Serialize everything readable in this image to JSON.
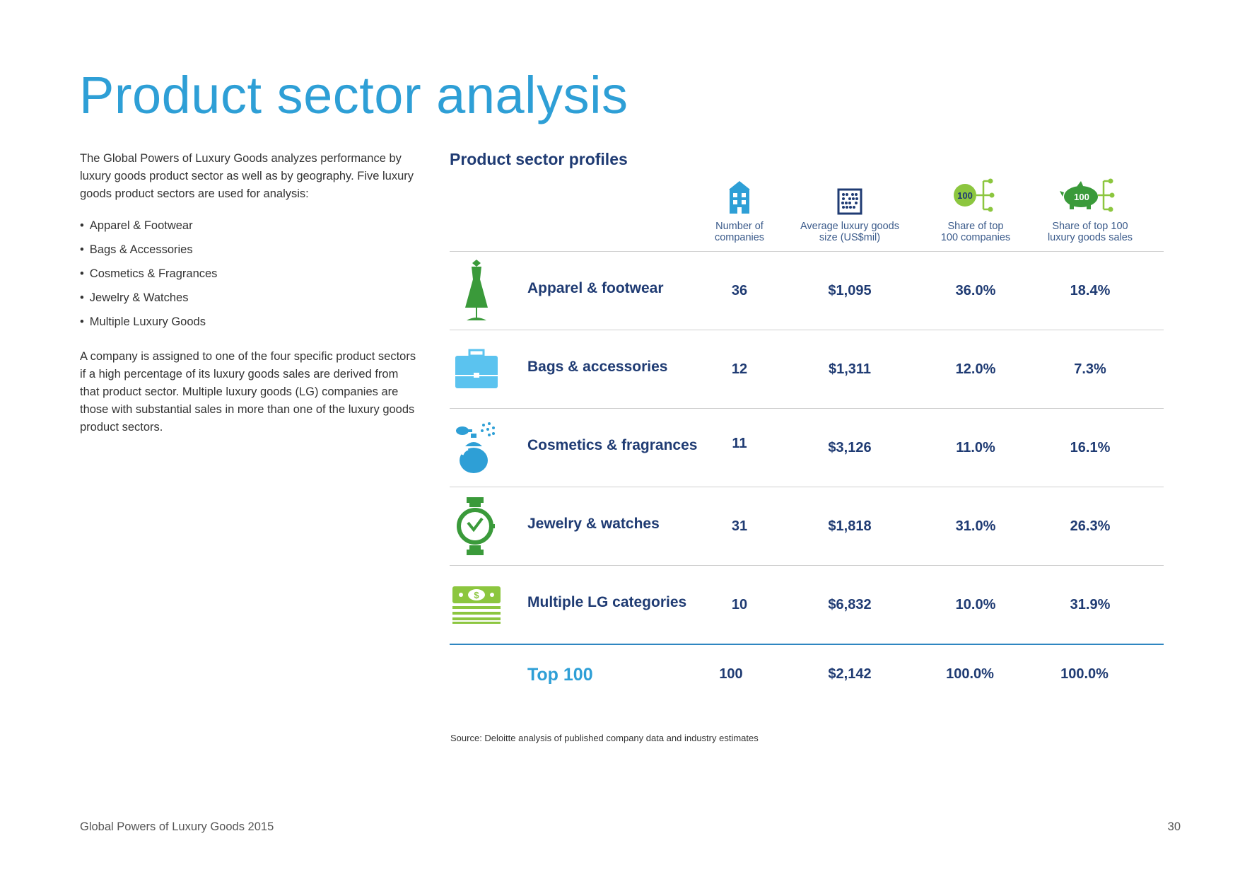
{
  "title": "Product sector analysis",
  "intro": {
    "paragraph1": "The Global Powers of Luxury Goods analyzes performance by luxury goods product sector as well as by geography. Five luxury goods product sectors are used for analysis:",
    "bullets": [
      "Apparel & Footwear",
      "Bags & Accessories",
      "Cosmetics & Fragrances",
      "Jewelry & Watches",
      "Multiple Luxury Goods"
    ],
    "paragraph2": "A company is assigned to one of the four specific product sectors if a high percentage of its luxury goods sales are derived from that product sector. Multiple luxury goods (LG) companies are those with substantial sales in more than one of the luxury goods product sectors."
  },
  "table": {
    "title": "Product sector profiles",
    "columns": [
      {
        "label_line1": "Number of",
        "label_line2": "companies",
        "icon": "building-icon"
      },
      {
        "label_line1": "Average luxury goods",
        "label_line2": "size (US$mil)",
        "icon": "abacus-icon"
      },
      {
        "label_line1": "Share of top",
        "label_line2": "100 companies",
        "icon": "share-100-icon",
        "badge": "100"
      },
      {
        "label_line1": "Share of top 100",
        "label_line2": "luxury goods sales",
        "icon": "piggy-bank-100-icon",
        "badge": "100"
      }
    ],
    "rows": [
      {
        "label": "Apparel & footwear",
        "icon": "dress-icon",
        "count": "36",
        "avg_size": "$1,095",
        "share_companies": "36.0%",
        "share_sales": "18.4%"
      },
      {
        "label": "Bags & accessories",
        "icon": "briefcase-icon",
        "count": "12",
        "avg_size": "$1,311",
        "share_companies": "12.0%",
        "share_sales": "7.3%"
      },
      {
        "label": "Cosmetics & fragrances",
        "icon": "perfume-icon",
        "count": "11",
        "avg_size": "$3,126",
        "share_companies": "11.0%",
        "share_sales": "16.1%"
      },
      {
        "label": "Jewelry & watches",
        "icon": "watch-icon",
        "count": "31",
        "avg_size": "$1,818",
        "share_companies": "31.0%",
        "share_sales": "26.3%"
      },
      {
        "label": "Multiple LG categories",
        "icon": "money-stack-icon",
        "count": "10",
        "avg_size": "$6,832",
        "share_companies": "10.0%",
        "share_sales": "31.9%"
      }
    ],
    "total": {
      "label": "Top 100",
      "count": "100",
      "avg_size": "$2,142",
      "share_companies": "100.0%",
      "share_sales": "100.0%"
    }
  },
  "source": "Source: Deloitte analysis of published company data and industry estimates",
  "footer": {
    "left": "Global Powers of Luxury Goods 2015",
    "page": "30"
  },
  "colors": {
    "title_blue": "#2e9fd6",
    "navy": "#1f3b73",
    "green": "#3a9a3a",
    "light_green": "#8cc63f",
    "light_blue": "#5bc3ef"
  }
}
